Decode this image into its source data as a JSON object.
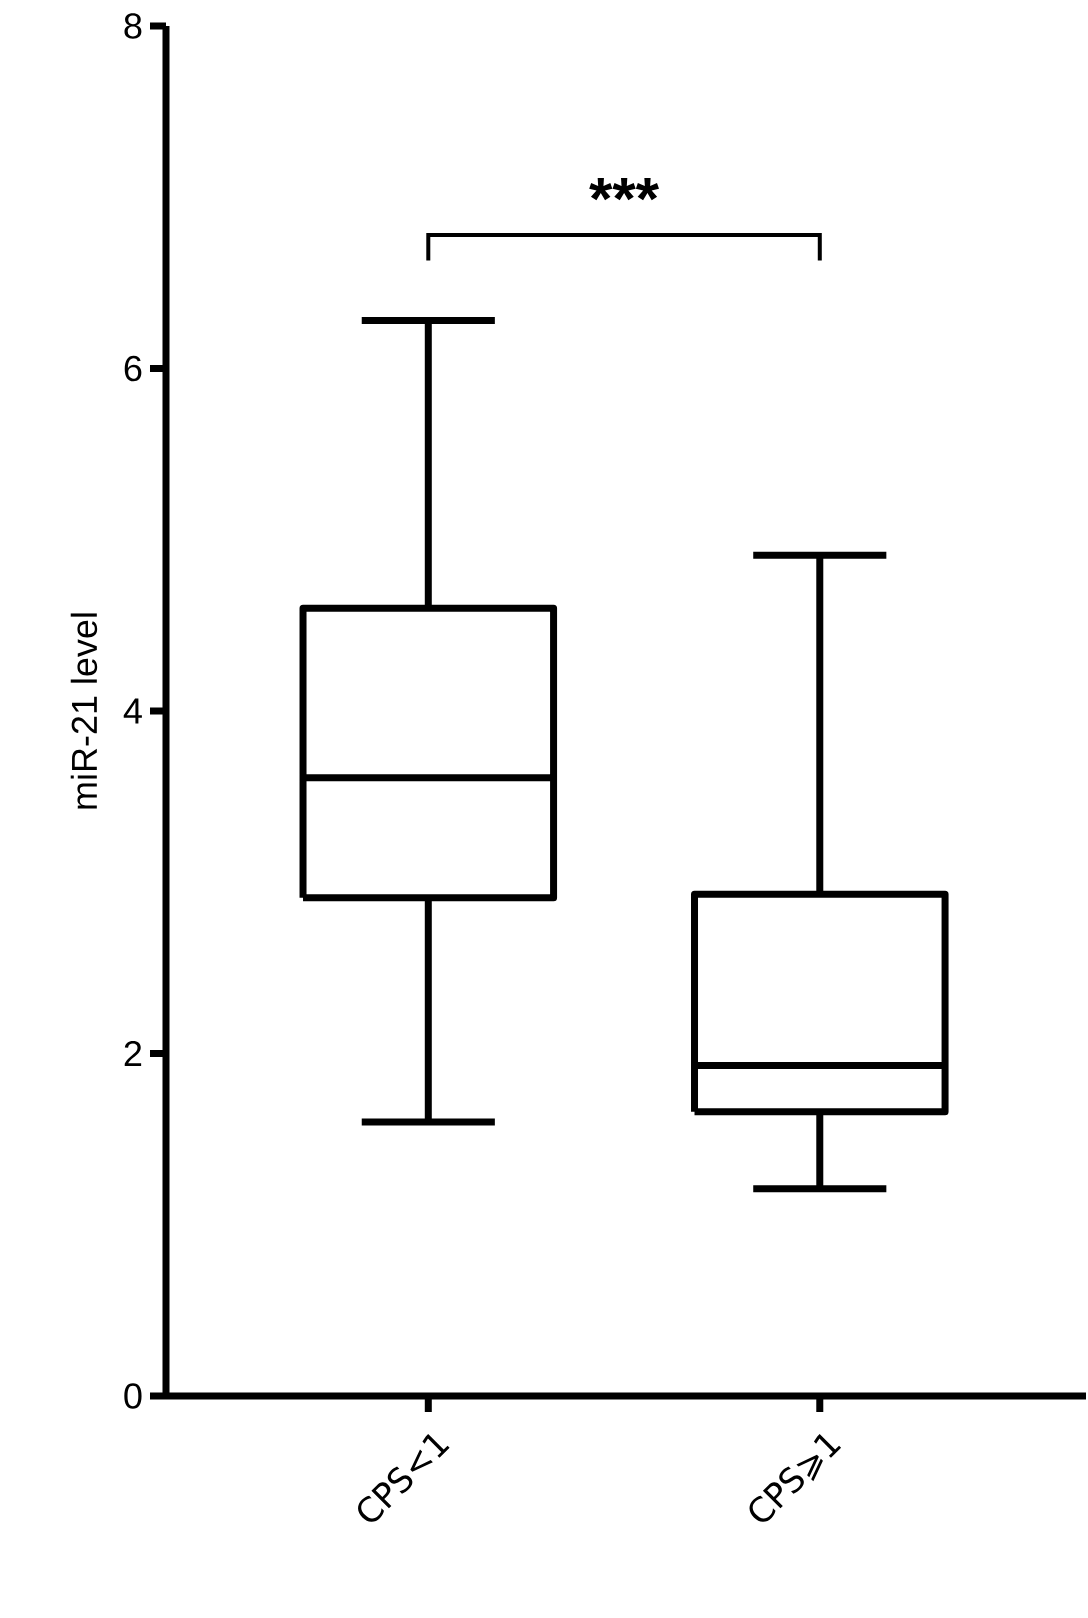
{
  "chart_data": {
    "type": "box",
    "ylabel": "miR-21 level",
    "categories": [
      "CPS<1",
      "CPS⩾1"
    ],
    "boxes": [
      {
        "low": 1.6,
        "q1": 2.91,
        "median": 3.61,
        "q3": 4.6,
        "high": 6.28
      },
      {
        "low": 1.21,
        "q1": 1.66,
        "median": 1.93,
        "q3": 2.93,
        "high": 4.91
      }
    ],
    "color": "#000000",
    "ylim": [
      0,
      8
    ],
    "yticks": [
      0,
      2,
      4,
      6,
      8
    ],
    "grid": false,
    "annotations": [
      "***"
    ]
  }
}
